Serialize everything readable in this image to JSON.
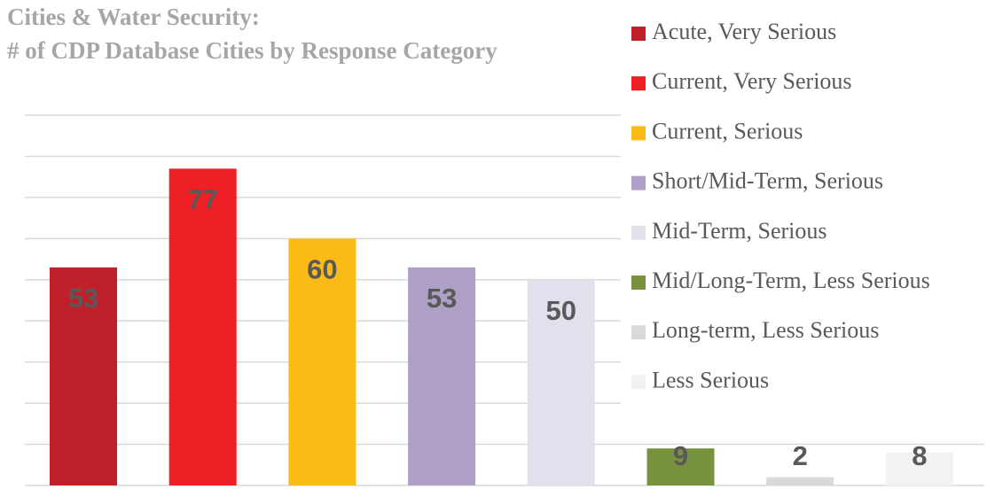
{
  "chart_data": {
    "type": "bar",
    "title": "Cities & Water Security:",
    "subtitle": "# of CDP Database Cities by Response Category",
    "categories": [
      "Acute, Very Serious",
      "Current, Very Serious",
      "Current, Serious",
      "Short/Mid-Term, Serious",
      "Mid-Term, Serious",
      "Mid/Long-Term, Less Serious",
      "Long-term, Less Serious",
      "Less Serious"
    ],
    "values": [
      53,
      77,
      60,
      53,
      50,
      9,
      2,
      8
    ],
    "colors": [
      "#c0202a",
      "#ee1f25",
      "#fbbb17",
      "#ae9fc6",
      "#e4dfec",
      "#76923c",
      "#d9d9d9",
      "#f2f2f2"
    ],
    "ylim": [
      0,
      90
    ],
    "yticks": [
      0,
      10,
      20,
      30,
      40,
      50,
      60,
      70,
      80,
      90
    ],
    "grid": true,
    "legend": "right"
  }
}
